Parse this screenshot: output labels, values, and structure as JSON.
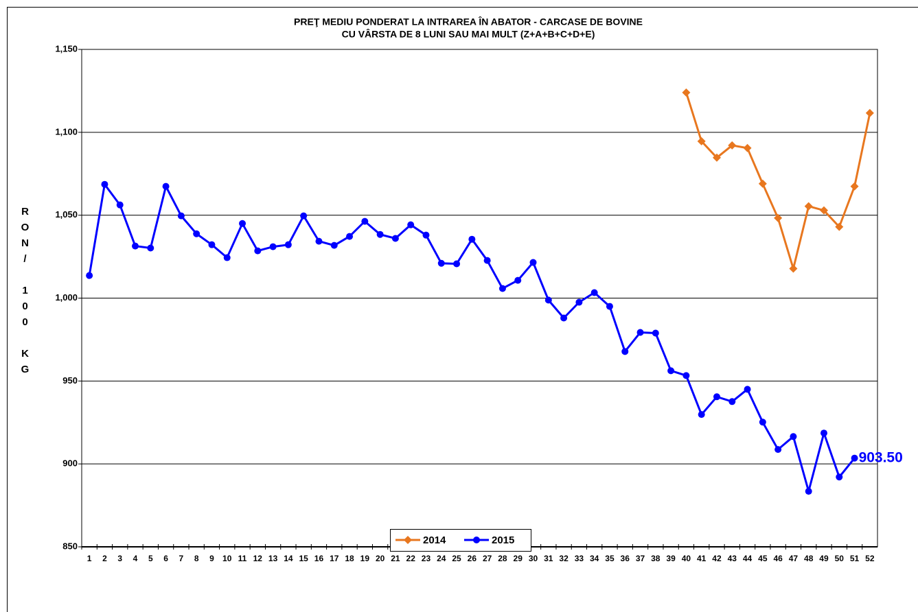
{
  "chart_data": {
    "type": "line",
    "title": [
      "PREŢ MEDIU PONDERAT LA INTRAREA ÎN ABATOR - CARCASE DE  BOVINE",
      "CU VÂRSTA DE 8 LUNI SAU MAI MULT (Z+A+B+C+D+E)"
    ],
    "y_label": "RON/ 100 KG",
    "categories": [
      "1",
      "2",
      "3",
      "4",
      "5",
      "6",
      "7",
      "8",
      "9",
      "10",
      "11",
      "12",
      "13",
      "14",
      "15",
      "16",
      "17",
      "18",
      "19",
      "20",
      "21",
      "22",
      "23",
      "24",
      "25",
      "26",
      "27",
      "28",
      "29",
      "30",
      "31",
      "32",
      "33",
      "34",
      "35",
      "36",
      "37",
      "38",
      "39",
      "40",
      "41",
      "42",
      "43",
      "44",
      "45",
      "46",
      "47",
      "48",
      "49",
      "50",
      "51",
      "52"
    ],
    "ylim": [
      850,
      1150
    ],
    "yticks": [
      {
        "value": 850,
        "label": "850"
      },
      {
        "value": 900,
        "label": "900"
      },
      {
        "value": 950,
        "label": "950"
      },
      {
        "value": 1000,
        "label": "1,000"
      },
      {
        "value": 1050,
        "label": "1,050"
      },
      {
        "value": 1100,
        "label": "1,100"
      },
      {
        "value": 1150,
        "label": "1,150"
      }
    ],
    "grid": true,
    "legend": "bottom",
    "series": [
      {
        "name": "2014",
        "color": "#E8771F",
        "marker": "diamond",
        "values": [
          null,
          null,
          null,
          null,
          null,
          null,
          null,
          null,
          null,
          null,
          null,
          null,
          null,
          null,
          null,
          null,
          null,
          null,
          null,
          null,
          null,
          null,
          null,
          null,
          null,
          null,
          null,
          null,
          null,
          null,
          null,
          null,
          null,
          null,
          null,
          null,
          null,
          null,
          null,
          1124,
          1094.6,
          1084.7,
          1092.1,
          1090.5,
          1069,
          1048.3,
          1017.8,
          1055.4,
          1052.9,
          1043,
          1067.4,
          1111.6
        ]
      },
      {
        "name": "2015",
        "color": "#0000FF",
        "marker": "circle",
        "values": [
          1013.6,
          1068.6,
          1056.2,
          1031.4,
          1030.2,
          1067.4,
          1049.6,
          1038.8,
          1032.2,
          1024.4,
          1045,
          1028.5,
          1031,
          1032.2,
          1049.6,
          1034.3,
          1031.8,
          1037.2,
          1046.3,
          1038.4,
          1036,
          1044.2,
          1038,
          1021,
          1020.7,
          1035.5,
          1022.7,
          1005.8,
          1010.7,
          1021.5,
          998.8,
          988,
          997.5,
          1003.3,
          995,
          967.8,
          979.3,
          978.9,
          956.2,
          953.3,
          929.8,
          940.5,
          937.6,
          945,
          925.2,
          908.7,
          916.5,
          883.5,
          918.6,
          892.1,
          903.5,
          null
        ],
        "value_labels": [
          null,
          null,
          null,
          null,
          null,
          null,
          null,
          null,
          null,
          null,
          null,
          null,
          null,
          null,
          null,
          null,
          null,
          null,
          null,
          null,
          null,
          null,
          null,
          null,
          null,
          null,
          null,
          null,
          null,
          null,
          null,
          null,
          null,
          null,
          null,
          null,
          null,
          null,
          null,
          null,
          null,
          null,
          null,
          null,
          null,
          null,
          null,
          null,
          null,
          null,
          "903.50",
          null
        ]
      }
    ]
  }
}
